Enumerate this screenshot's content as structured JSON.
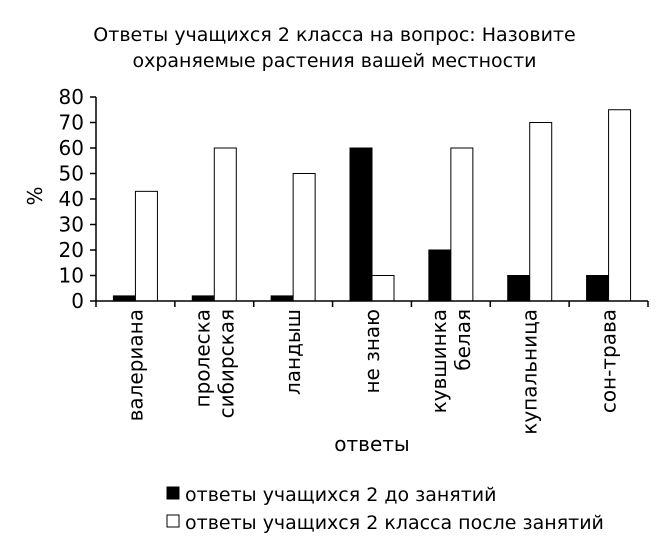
{
  "chart_data": {
    "type": "bar",
    "title_lines": [
      "Ответы учащихся 2 класса на вопрос: Назовите",
      "охраняемые растения вашей местности"
    ],
    "xlabel": "ответы",
    "ylabel": "%",
    "ylim": [
      0,
      80
    ],
    "yticks": [
      0,
      10,
      20,
      30,
      40,
      50,
      60,
      70,
      80
    ],
    "grid": false,
    "legend_position": "bottom",
    "categories": [
      [
        "валериана"
      ],
      [
        "пролеска",
        "сибирская"
      ],
      [
        "ландыш"
      ],
      [
        "не знаю"
      ],
      [
        "кувшинка",
        "белая"
      ],
      [
        "купальница"
      ],
      [
        "сон-трава"
      ]
    ],
    "series": [
      {
        "name": "ответы учащихся 2 до занятий",
        "color": "#000000",
        "values": [
          2,
          2,
          2,
          60,
          20,
          10,
          10
        ]
      },
      {
        "name": "ответы учащихся 2 класса после занятий",
        "color": "#ffffff",
        "values": [
          43,
          60,
          50,
          10,
          60,
          70,
          75
        ]
      }
    ]
  }
}
